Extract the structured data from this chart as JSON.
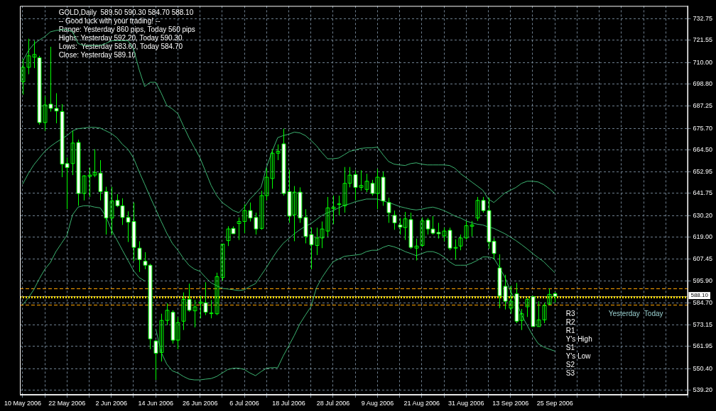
{
  "chart_data": {
    "type": "candlestick",
    "title": "GOLD,Daily  589.50 590.30 584.70 588.10",
    "color": "#00ff00",
    "annotations": [
      "-- Good luck with your trading! --",
      "Range: Yesterday 860 pips, Today 560 pips",
      "Highs: Yesterday 592.20, Today 590.30",
      "Lows:  Yesterday 583.60, Today 584.70",
      "Close: Yesterday 589.10",
      "R3",
      "R2",
      "R1",
      "Y's High",
      "S1",
      "Y's Low",
      "S2",
      "S3",
      "Yesterday",
      "Today"
    ],
    "categories": [
      "10 May 2006",
      null,
      null,
      null,
      null,
      null,
      null,
      null,
      "22 May 2006",
      null,
      null,
      null,
      null,
      null,
      null,
      null,
      "2 Jun 2006",
      null,
      null,
      null,
      null,
      null,
      null,
      null,
      "14 Jun 2006",
      null,
      null,
      null,
      null,
      null,
      null,
      null,
      "26 Jun 2006",
      null,
      null,
      null,
      null,
      null,
      null,
      null,
      "6 Jul 2006",
      null,
      null,
      null,
      null,
      null,
      null,
      null,
      "18 Jul 2006",
      null,
      null,
      null,
      null,
      null,
      null,
      null,
      "28 Jul 2006",
      null,
      null,
      null,
      null,
      null,
      null,
      null,
      "9 Aug 2006",
      null,
      null,
      null,
      null,
      null,
      null,
      null,
      "21 Aug 2006",
      null,
      null,
      null,
      null,
      null,
      null,
      null,
      "31 Aug 2006",
      null,
      null,
      null,
      null,
      null,
      null,
      null,
      "13 Sep 2006",
      null,
      null,
      null,
      null,
      null,
      null,
      null,
      "25 Sep 2006"
    ],
    "ohlc": [
      [
        700.0,
        711.8,
        693.3,
        707.5
      ],
      [
        707.5,
        722.4,
        703.9,
        713.5
      ],
      [
        712.8,
        721.4,
        707.1,
        714.2
      ],
      [
        712.5,
        713.5,
        677.6,
        678.7
      ],
      [
        678.7,
        692.5,
        674.4,
        687.9
      ],
      [
        688.3,
        718.2,
        684.4,
        686.1
      ],
      [
        686.1,
        694.0,
        678.3,
        684.7
      ],
      [
        684.4,
        688.3,
        650.2,
        657.0
      ],
      [
        657.3,
        660.5,
        633.5,
        655.2
      ],
      [
        657.3,
        674.4,
        651.3,
        668.0
      ],
      [
        668.3,
        669.8,
        635.3,
        641.7
      ],
      [
        641.7,
        651.3,
        638.1,
        650.9
      ],
      [
        650.6,
        655.2,
        639.9,
        651.3
      ],
      [
        651.3,
        664.8,
        650.2,
        652.7
      ],
      [
        652.3,
        659.1,
        638.1,
        642.7
      ],
      [
        642.7,
        645.2,
        620.3,
        628.9
      ],
      [
        628.9,
        645.2,
        620.0,
        637.8
      ],
      [
        638.1,
        641.3,
        634.6,
        635.3
      ],
      [
        635.3,
        639.2,
        625.3,
        629.2
      ],
      [
        629.2,
        632.4,
        616.4,
        626.7
      ],
      [
        627.1,
        637.0,
        606.4,
        613.6
      ],
      [
        613.2,
        616.8,
        600.8,
        607.2
      ],
      [
        606.4,
        611.1,
        602.2,
        604.3
      ],
      [
        604.3,
        605.0,
        560.5,
        565.9
      ],
      [
        564.8,
        565.2,
        544.5,
        558.4
      ],
      [
        558.8,
        579.0,
        554.1,
        575.5
      ],
      [
        575.5,
        584.4,
        573.0,
        580.8
      ],
      [
        579.8,
        580.8,
        563.4,
        565.2
      ],
      [
        565.2,
        577.3,
        560.5,
        574.4
      ],
      [
        575.1,
        590.1,
        570.5,
        586.5
      ],
      [
        586.5,
        594.7,
        580.1,
        580.8
      ],
      [
        580.5,
        586.2,
        571.9,
        582.6
      ],
      [
        584.4,
        588.3,
        576.6,
        585.1
      ],
      [
        584.7,
        595.4,
        578.3,
        579.8
      ],
      [
        579.4,
        586.2,
        576.6,
        579.4
      ],
      [
        579.0,
        600.4,
        578.3,
        598.3
      ],
      [
        597.9,
        615.3,
        596.1,
        615.3
      ],
      [
        617.1,
        624.6,
        614.3,
        623.2
      ],
      [
        623.5,
        624.6,
        620.7,
        620.7
      ],
      [
        626.0,
        629.2,
        617.5,
        627.1
      ],
      [
        627.1,
        636.0,
        621.0,
        632.8
      ],
      [
        632.8,
        637.0,
        627.1,
        628.9
      ],
      [
        629.2,
        631.7,
        620.3,
        623.2
      ],
      [
        623.5,
        643.1,
        622.8,
        640.6
      ],
      [
        640.6,
        654.8,
        638.1,
        650.2
      ],
      [
        649.5,
        664.8,
        644.2,
        662.7
      ],
      [
        662.7,
        667.3,
        659.1,
        663.7
      ],
      [
        667.6,
        675.5,
        640.6,
        641.7
      ],
      [
        642.7,
        654.1,
        626.4,
        629.9
      ],
      [
        630.6,
        645.6,
        616.8,
        642.4
      ],
      [
        642.4,
        644.9,
        626.4,
        628.9
      ],
      [
        629.2,
        633.5,
        615.7,
        619.3
      ],
      [
        620.3,
        623.9,
        602.2,
        615.0
      ],
      [
        614.6,
        623.9,
        609.6,
        618.5
      ],
      [
        618.5,
        627.1,
        613.2,
        623.2
      ],
      [
        622.1,
        639.9,
        619.3,
        634.2
      ],
      [
        633.8,
        640.6,
        625.7,
        634.6
      ],
      [
        636.0,
        640.6,
        630.3,
        636.3
      ],
      [
        635.3,
        655.5,
        631.7,
        647.0
      ],
      [
        647.0,
        655.5,
        644.9,
        651.3
      ],
      [
        651.6,
        653.8,
        638.1,
        644.9
      ],
      [
        644.9,
        653.8,
        643.1,
        645.9
      ],
      [
        643.8,
        652.0,
        642.4,
        648.1
      ],
      [
        647.0,
        648.8,
        640.6,
        641.7
      ],
      [
        641.7,
        654.5,
        633.5,
        650.2
      ],
      [
        650.2,
        653.1,
        635.3,
        637.8
      ],
      [
        637.0,
        639.5,
        626.4,
        631.7
      ],
      [
        630.3,
        632.8,
        622.8,
        626.4
      ],
      [
        625.3,
        628.9,
        620.3,
        624.2
      ],
      [
        623.9,
        632.1,
        617.5,
        628.5
      ],
      [
        628.1,
        631.7,
        612.8,
        613.6
      ],
      [
        613.2,
        618.2,
        606.8,
        614.3
      ],
      [
        614.6,
        629.2,
        613.9,
        627.4
      ],
      [
        627.8,
        628.9,
        620.3,
        623.2
      ],
      [
        623.2,
        629.9,
        620.3,
        621.0
      ],
      [
        621.4,
        626.4,
        618.2,
        620.7
      ],
      [
        619.6,
        623.9,
        616.8,
        622.1
      ],
      [
        622.5,
        623.9,
        612.1,
        613.2
      ],
      [
        613.2,
        617.8,
        607.2,
        613.6
      ],
      [
        614.3,
        620.3,
        612.1,
        618.5
      ],
      [
        618.5,
        627.4,
        617.8,
        624.9
      ],
      [
        624.6,
        627.4,
        619.3,
        625.3
      ],
      [
        628.9,
        639.9,
        627.4,
        638.1
      ],
      [
        638.1,
        639.9,
        631.7,
        632.8
      ],
      [
        632.8,
        639.5,
        612.8,
        616.4
      ],
      [
        616.8,
        618.5,
        607.5,
        610.4
      ],
      [
        602.9,
        610.0,
        581.9,
        588.3
      ],
      [
        593.3,
        599.3,
        581.2,
        585.5
      ],
      [
        581.9,
        593.6,
        579.0,
        585.5
      ],
      [
        589.4,
        595.1,
        574.1,
        575.1
      ],
      [
        575.5,
        581.5,
        570.5,
        579.0
      ],
      [
        582.6,
        587.2,
        577.3,
        586.5
      ],
      [
        587.9,
        588.3,
        572.3,
        572.3
      ],
      [
        572.3,
        585.5,
        572.3,
        575.8
      ],
      [
        575.8,
        584.7,
        574.1,
        583.3
      ],
      [
        584.0,
        592.2,
        583.6,
        589.1
      ],
      [
        589.5,
        590.3,
        584.7,
        588.1
      ]
    ],
    "colors": [
      "#00ff00",
      "#00ff00",
      "#00ff00",
      "#ffffff",
      "#00ff00",
      "#ffffff",
      "#ffffff",
      "#ffffff",
      "#ffffff",
      "#00ff00",
      "#ffffff",
      "#00ff00",
      "#00ff00",
      "#00ff00",
      "#ffffff",
      "#ffffff",
      "#00ff00",
      "#ffffff",
      "#ffffff",
      "#ffffff",
      "#ffffff",
      "#ffffff",
      "#ffffff",
      "#ffffff",
      "#ffffff",
      "#00ff00",
      "#00ff00",
      "#ffffff",
      "#00ff00",
      "#00ff00",
      "#ffffff",
      "#00ff00",
      "#00ff00",
      "#ffffff",
      "#00ff00",
      "#00ff00",
      "#00ff00",
      "#00ff00",
      "#ffffff",
      "#00ff00",
      "#00ff00",
      "#ffffff",
      "#ffffff",
      "#00ff00",
      "#00ff00",
      "#00ff00",
      "#00ff00",
      "#ffffff",
      "#ffffff",
      "#00ff00",
      "#ffffff",
      "#ffffff",
      "#ffffff",
      "#00ff00",
      "#00ff00",
      "#00ff00",
      "#00ff00",
      "#00ff00",
      "#00ff00",
      "#00ff00",
      "#ffffff",
      "#00ff00",
      "#00ff00",
      "#ffffff",
      "#00ff00",
      "#ffffff",
      "#ffffff",
      "#ffffff",
      "#ffffff",
      "#00ff00",
      "#ffffff",
      "#00ff00",
      "#00ff00",
      "#ffffff",
      "#ffffff",
      "#ffffff",
      "#00ff00",
      "#ffffff",
      "#00ff00",
      "#00ff00",
      "#00ff00",
      "#00ff00",
      "#00ff00",
      "#ffffff",
      "#ffffff",
      "#ffffff",
      "#ffffff",
      "#ffffff",
      "#00ff00",
      "#ffffff",
      "#00ff00",
      "#00ff00",
      "#ffffff",
      "#00ff00",
      "#00ff00",
      "#00ff00",
      "#ffffff"
    ],
    "series": [
      {
        "type": "line",
        "color": "#3cb371",
        "values": [
          710.7,
          716.0,
          719.6,
          721.7,
          723.5,
          726.0,
          726.7,
          727.1,
          727.1,
          726.0,
          719.9,
          718.9,
          718.9,
          718.9,
          718.9,
          719.9,
          721.4,
          721.4,
          721.4,
          721.4,
          717.1,
          706.4,
          697.5,
          699.7,
          699.7,
          694.0,
          687.6,
          685.8,
          683.3,
          676.9,
          670.8,
          665.5,
          660.2,
          653.1,
          645.9,
          640.6,
          637.0,
          634.9,
          632.8,
          631.7,
          634.6,
          638.8,
          641.7,
          644.9,
          655.5,
          663.7,
          670.8,
          671.9,
          672.6,
          673.7,
          673.3,
          671.9,
          669.4,
          666.6,
          663.0,
          659.8,
          659.8,
          660.2,
          661.9,
          663.7,
          664.4,
          665.2,
          665.5,
          665.5,
          665.9,
          661.9,
          658.4,
          657.0,
          656.6,
          656.3,
          657.3,
          657.7,
          657.0,
          656.6,
          656.6,
          656.6,
          656.6,
          656.3,
          654.8,
          652.0,
          649.9,
          647.7,
          645.6,
          643.4,
          638.8,
          637.0,
          639.5,
          642.0,
          643.4,
          644.9,
          647.0,
          648.1,
          648.1,
          647.7,
          646.3,
          644.2,
          641.7
        ]
      },
      {
        "type": "line",
        "color": "#3cb371",
        "values": [
          646.6,
          652.0,
          656.6,
          660.2,
          663.7,
          666.2,
          668.3,
          670.1,
          671.9,
          674.4,
          675.5,
          675.8,
          676.2,
          676.2,
          675.8,
          674.4,
          673.0,
          670.8,
          667.3,
          664.8,
          660.2,
          653.1,
          646.6,
          639.9,
          633.5,
          627.1,
          621.0,
          615.7,
          612.1,
          607.9,
          604.3,
          602.2,
          601.1,
          597.9,
          595.1,
          593.6,
          592.2,
          591.9,
          591.5,
          591.1,
          591.5,
          593.3,
          594.7,
          599.0,
          603.2,
          607.9,
          612.1,
          615.7,
          618.2,
          620.7,
          622.8,
          624.6,
          626.0,
          628.1,
          630.3,
          631.7,
          632.8,
          634.2,
          635.6,
          636.3,
          637.4,
          638.1,
          638.8,
          638.8,
          638.8,
          637.8,
          637.0,
          636.0,
          634.9,
          634.2,
          633.5,
          633.1,
          633.5,
          634.2,
          634.6,
          633.8,
          632.8,
          631.4,
          629.9,
          628.9,
          627.4,
          626.4,
          625.7,
          625.3,
          624.2,
          623.5,
          622.1,
          620.7,
          618.9,
          617.1,
          615.0,
          612.8,
          610.4,
          608.2,
          606.1,
          603.2,
          600.4
        ]
      },
      {
        "type": "line",
        "color": "#3cb371",
        "values": [
          583.7,
          587.2,
          591.5,
          597.2,
          602.2,
          605.7,
          611.4,
          615.7,
          620.0,
          630.6,
          634.6,
          635.3,
          635.3,
          634.6,
          634.2,
          629.9,
          622.8,
          617.5,
          612.1,
          606.8,
          601.5,
          597.9,
          596.1,
          null,
          571.2,
          558.8,
          552.7,
          549.2,
          548.1,
          546.3,
          544.9,
          544.5,
          544.5,
          544.9,
          545.2,
          546.3,
          548.1,
          549.9,
          550.6,
          550.6,
          549.9,
          548.1,
          546.7,
          548.8,
          550.6,
          550.9,
          550.9,
          557.0,
          562.3,
          567.7,
          573.7,
          578.3,
          582.6,
          592.6,
          597.9,
          602.2,
          606.1,
          607.5,
          608.9,
          609.3,
          609.6,
          610.0,
          611.4,
          612.1,
          612.1,
          613.6,
          614.6,
          613.9,
          612.8,
          611.4,
          610.4,
          609.3,
          610.4,
          611.4,
          611.4,
          610.4,
          608.6,
          606.1,
          604.3,
          604.3,
          604.3,
          605.4,
          606.8,
          608.6,
          608.6,
          607.9,
          603.2,
          597.9,
          590.8,
          585.5,
          578.3,
          573.0,
          567.7,
          563.4,
          561.6,
          560.5,
          559.5
        ]
      }
    ],
    "ylim": [
      536.7,
      739.5
    ],
    "yticks": [
      {
        "value": 539.2,
        "label": "539.20"
      },
      {
        "value": 550.4,
        "label": "550.40"
      },
      {
        "value": 561.95,
        "label": "561.95"
      },
      {
        "value": 573.15,
        "label": "573.15"
      },
      {
        "value": 584.7,
        "label": "584.70"
      },
      {
        "value": 595.9,
        "label": "595.90"
      },
      {
        "value": 607.45,
        "label": "607.45"
      },
      {
        "value": 619.0,
        "label": "619.00"
      },
      {
        "value": 630.2,
        "label": "630.20"
      },
      {
        "value": 641.75,
        "label": "641.75"
      },
      {
        "value": 652.95,
        "label": "652.95"
      },
      {
        "value": 664.5,
        "label": "664.50"
      },
      {
        "value": 675.7,
        "label": "675.70"
      },
      {
        "value": 687.25,
        "label": "687.25"
      },
      {
        "value": 698.8,
        "label": "698.80"
      },
      {
        "value": 710.0,
        "label": "710.00"
      },
      {
        "value": 721.55,
        "label": "721.55"
      },
      {
        "value": 732.75,
        "label": "732.75"
      }
    ],
    "grid": true,
    "ref_lines": [
      {
        "axis": "y",
        "value": 588.1,
        "label": "588.10",
        "color": "#808080",
        "line_style": "solid"
      },
      {
        "axis": "y",
        "value": 592.2,
        "color": "#ffa500",
        "line_style": "dashed"
      },
      {
        "axis": "y",
        "value": 587.7,
        "color": "#ffd700",
        "line_style": "dotted"
      },
      {
        "axis": "y",
        "value": 583.6,
        "color": "#ffa500",
        "line_style": "dashed"
      }
    ]
  }
}
